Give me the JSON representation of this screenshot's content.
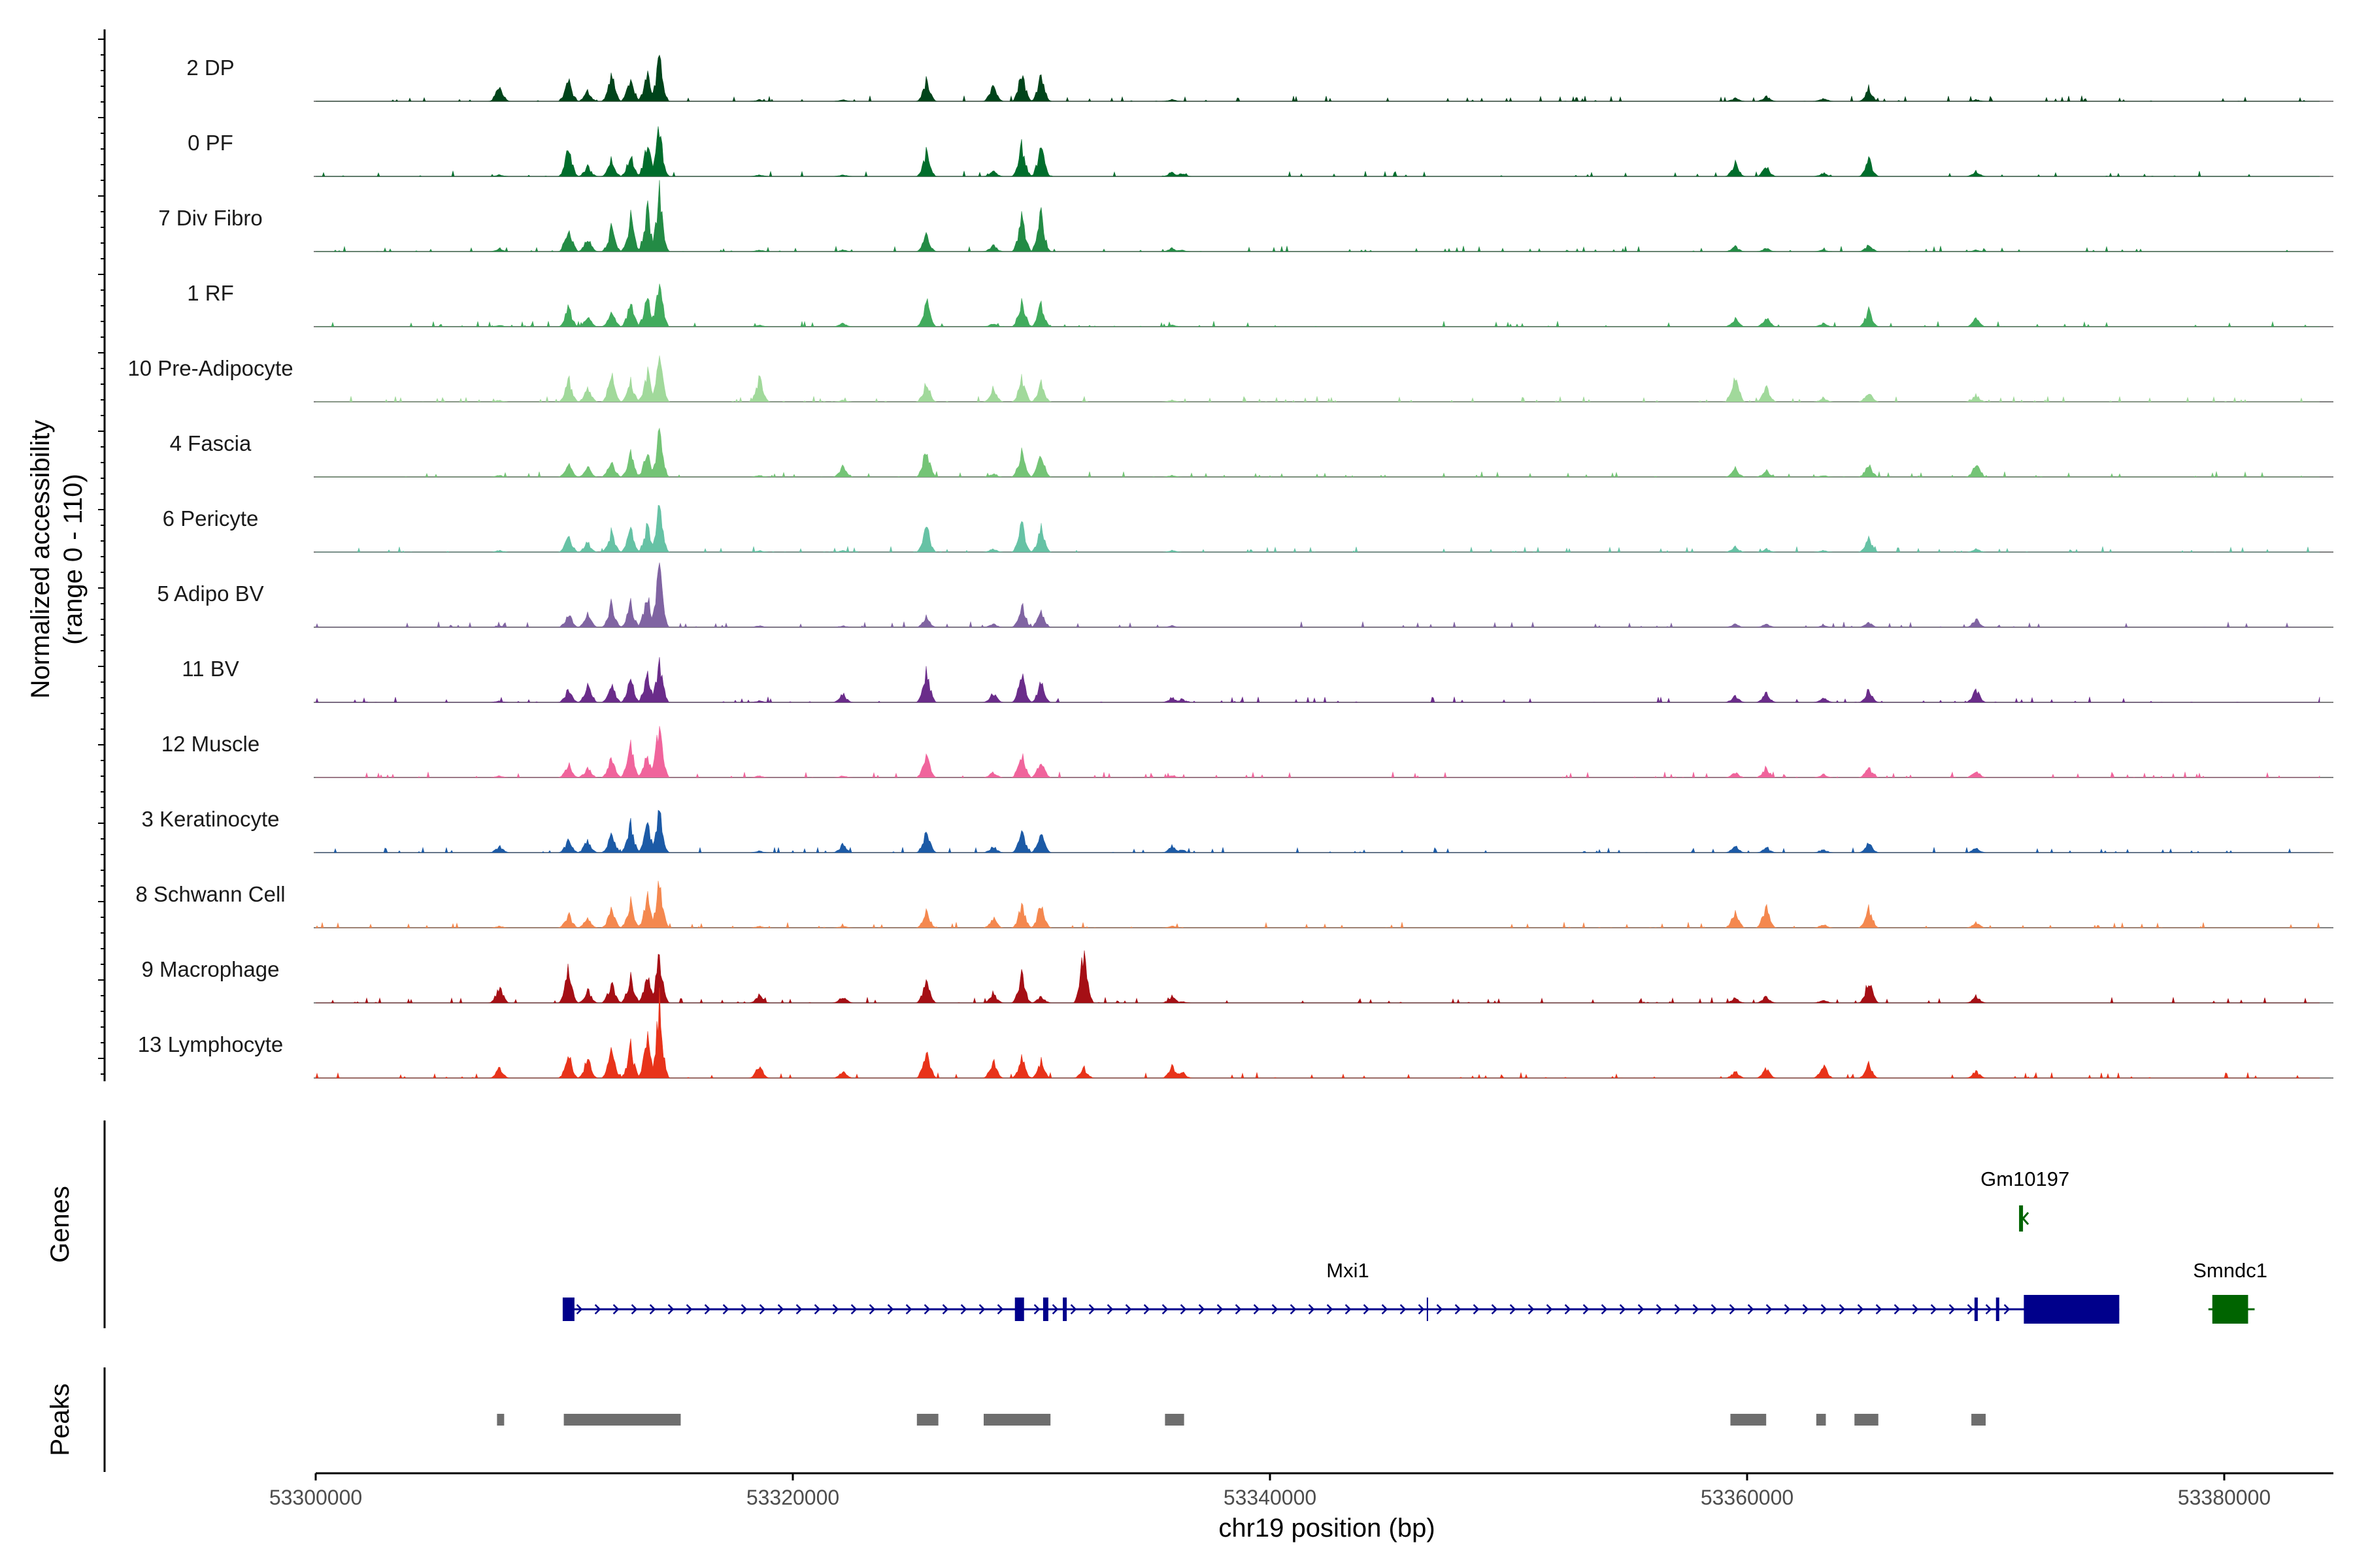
{
  "chart_data": {
    "type": "area",
    "title": "",
    "ylabel": "Normalized accessibility",
    "ylabel_range": "(range 0 - 110)",
    "y_range": [
      0,
      110
    ],
    "xlabel": "chr19 position (bp)",
    "xlim": [
      53300000,
      53385000
    ],
    "x_ticks": [
      53300000,
      53320000,
      53340000,
      53360000,
      53380000
    ],
    "x_tick_labels": [
      "53300000",
      "53320000",
      "53340000",
      "53360000",
      "53380000"
    ],
    "region_start": 53300000,
    "region_end": 53384000,
    "peak_centers_bp": [
      53307700,
      53310600,
      53311400,
      53312400,
      53313200,
      53313900,
      53314400,
      53318600,
      53322100,
      53325600,
      53328400,
      53329600,
      53330400,
      53332200,
      53335900,
      53336300,
      53359500,
      53360800,
      53363200,
      53365100,
      53369600
    ],
    "tracks": [
      {
        "name": "2 DP",
        "color": "#00441b",
        "heights": [
          10,
          12,
          6,
          16,
          14,
          18,
          28,
          1,
          1,
          12,
          10,
          18,
          16,
          0,
          1,
          0,
          2,
          3,
          2,
          8,
          1
        ]
      },
      {
        "name": "0 PF",
        "color": "#006d2c",
        "heights": [
          1,
          18,
          6,
          10,
          14,
          20,
          30,
          1,
          1,
          14,
          3,
          18,
          18,
          0,
          3,
          2,
          8,
          6,
          2,
          10,
          3
        ]
      },
      {
        "name": "7 Div Fibro",
        "color": "#238b45",
        "heights": [
          2,
          16,
          8,
          14,
          20,
          26,
          34,
          1,
          1,
          10,
          4,
          22,
          22,
          0,
          2,
          1,
          3,
          2,
          1,
          4,
          1
        ]
      },
      {
        "name": "1 RF",
        "color": "#41ab5d",
        "heights": [
          1,
          12,
          6,
          10,
          14,
          18,
          28,
          1,
          2,
          16,
          2,
          16,
          14,
          0,
          1,
          0,
          5,
          6,
          2,
          10,
          5
        ]
      },
      {
        "name": "10 Pre-Adipocyte",
        "color": "#a1d99b",
        "heights": [
          1,
          14,
          8,
          16,
          12,
          18,
          30,
          14,
          1,
          12,
          8,
          14,
          12,
          0,
          1,
          0,
          16,
          10,
          2,
          6,
          4
        ]
      },
      {
        "name": "4 Fascia",
        "color": "#74c476",
        "heights": [
          1,
          8,
          6,
          10,
          14,
          16,
          26,
          1,
          6,
          18,
          2,
          16,
          14,
          0,
          1,
          0,
          5,
          4,
          1,
          8,
          8
        ]
      },
      {
        "name": "6 Pericyte",
        "color": "#66c2a5",
        "heights": [
          1,
          10,
          6,
          12,
          14,
          16,
          26,
          1,
          1,
          16,
          2,
          18,
          14,
          0,
          1,
          0,
          3,
          2,
          1,
          8,
          2
        ]
      },
      {
        "name": "5 Adipo BV",
        "color": "#8064a2",
        "heights": [
          1,
          8,
          8,
          14,
          14,
          20,
          34,
          1,
          1,
          6,
          2,
          14,
          10,
          0,
          1,
          0,
          2,
          2,
          1,
          3,
          5
        ]
      },
      {
        "name": "11 BV",
        "color": "#6a2c8a",
        "heights": [
          1,
          8,
          10,
          12,
          14,
          18,
          24,
          1,
          5,
          20,
          6,
          18,
          12,
          0,
          3,
          2,
          4,
          6,
          3,
          8,
          8
        ]
      },
      {
        "name": "12 Muscle",
        "color": "#f0649c",
        "heights": [
          1,
          8,
          6,
          12,
          20,
          14,
          32,
          1,
          1,
          14,
          3,
          14,
          10,
          0,
          1,
          0,
          3,
          6,
          2,
          6,
          4
        ]
      },
      {
        "name": "3 Keratinocyte",
        "color": "#1c5aa6",
        "heights": [
          4,
          8,
          8,
          12,
          16,
          18,
          24,
          1,
          5,
          14,
          4,
          12,
          14,
          0,
          4,
          2,
          4,
          3,
          2,
          6,
          3
        ]
      },
      {
        "name": "8 Schwann Cell",
        "color": "#f4884f",
        "heights": [
          1,
          8,
          6,
          12,
          16,
          18,
          26,
          1,
          1,
          10,
          6,
          14,
          14,
          0,
          1,
          0,
          10,
          14,
          2,
          12,
          3
        ]
      },
      {
        "name": "9 Macrophage",
        "color": "#a50f15",
        "heights": [
          10,
          20,
          8,
          12,
          16,
          18,
          30,
          5,
          4,
          14,
          6,
          16,
          4,
          32,
          4,
          1,
          3,
          4,
          2,
          14,
          4
        ]
      },
      {
        "name": "13 Lymphocyte",
        "color": "#e8331a",
        "heights": [
          6,
          14,
          12,
          16,
          18,
          26,
          44,
          8,
          4,
          18,
          10,
          12,
          10,
          6,
          8,
          4,
          4,
          6,
          8,
          8,
          4
        ]
      }
    ],
    "genes_label": "Genes",
    "genes": [
      {
        "name": "Mxi1",
        "strand": "+",
        "start": 53310400,
        "end": 53375600,
        "color": "#00008b",
        "row": 2
      },
      {
        "name": "Gm10197",
        "strand": "-",
        "start": 53371400,
        "end": 53371900,
        "color": "#006400",
        "row": 1
      },
      {
        "name": "Smndc1",
        "strand": "-",
        "start": 53379500,
        "end": 53381000,
        "color": "#006400",
        "row": 2
      }
    ],
    "peaks_label": "Peaks",
    "peaks": [
      {
        "start": 53307600,
        "end": 53307900
      },
      {
        "start": 53310400,
        "end": 53315300
      },
      {
        "start": 53325200,
        "end": 53326100
      },
      {
        "start": 53328000,
        "end": 53330800
      },
      {
        "start": 53335600,
        "end": 53336400
      },
      {
        "start": 53359300,
        "end": 53360800
      },
      {
        "start": 53362900,
        "end": 53363300
      },
      {
        "start": 53364500,
        "end": 53365500
      },
      {
        "start": 53369400,
        "end": 53370000
      }
    ]
  }
}
